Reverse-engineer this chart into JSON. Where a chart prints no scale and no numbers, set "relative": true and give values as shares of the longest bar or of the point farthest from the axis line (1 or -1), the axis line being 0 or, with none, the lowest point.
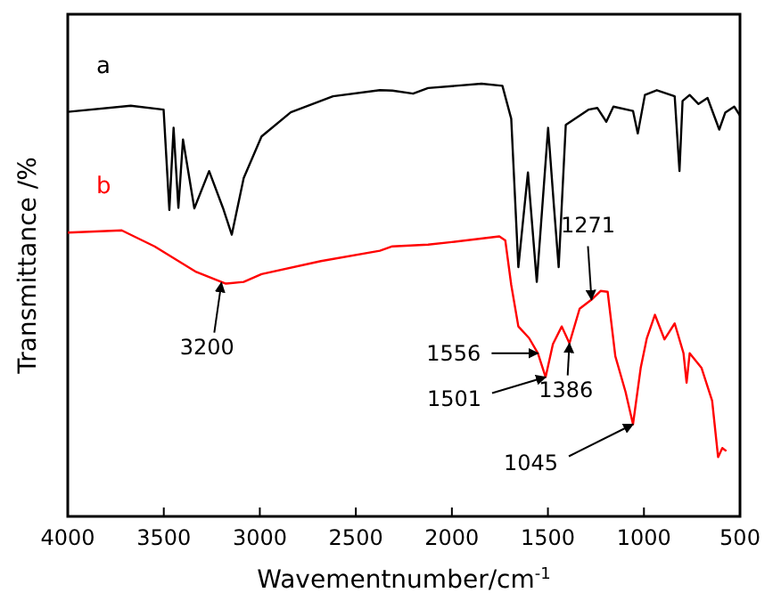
{
  "chart_data": {
    "type": "line",
    "relative": true,
    "xlabel": "Wavementnumber/cm$^{-1}$",
    "ylabel": "Transmittance /%",
    "xlim": [
      4000,
      500
    ],
    "xticks": [
      4000,
      3500,
      3000,
      2500,
      2000,
      1500,
      1000,
      500
    ],
    "tick_labels": "x",
    "legend": false,
    "series": [
      {
        "name": "a",
        "color": "#000000",
        "x": [
          4000,
          3672,
          3501,
          3471,
          3449,
          3424,
          3400,
          3341,
          3264,
          3192,
          3146,
          3084,
          2991,
          2839,
          2619,
          2375,
          2310,
          2202,
          2124,
          1846,
          1737,
          1691,
          1654,
          1604,
          1558,
          1499,
          1468,
          1444,
          1407,
          1289,
          1243,
          1196,
          1159,
          1057,
          1032,
          995,
          933,
          840,
          815,
          799,
          762,
          716,
          669,
          608,
          577,
          530,
          500
        ],
        "values": [
          0.935,
          0.949,
          0.94,
          0.708,
          0.898,
          0.713,
          0.871,
          0.712,
          0.798,
          0.713,
          0.651,
          0.782,
          0.878,
          0.934,
          0.971,
          0.985,
          0.984,
          0.977,
          0.99,
          1,
          0.995,
          0.919,
          0.576,
          0.795,
          0.542,
          0.898,
          0.713,
          0.576,
          0.905,
          0.94,
          0.944,
          0.912,
          0.947,
          0.937,
          0.885,
          0.974,
          0.985,
          0.971,
          0.798,
          0.96,
          0.974,
          0.953,
          0.967,
          0.894,
          0.933,
          0.947,
          0.926
        ]
      },
      {
        "name": "b",
        "color": "#ff0000",
        "x": [
          4000,
          3719,
          3548,
          3331,
          3177,
          3084,
          2991,
          2682,
          2375,
          2310,
          2124,
          2001,
          1753,
          1722,
          1691,
          1654,
          1598,
          1552,
          1512,
          1474,
          1428,
          1388,
          1335,
          1273,
          1226,
          1189,
          1149,
          1096,
          1057,
          1017,
          985,
          943,
          893,
          840,
          794,
          778,
          762,
          700,
          645,
          614,
          592,
          571
        ],
        "values": [
          0.656,
          0.661,
          0.624,
          0.565,
          0.538,
          0.542,
          0.56,
          0.59,
          0.614,
          0.624,
          0.628,
          0.634,
          0.647,
          0.638,
          0.535,
          0.439,
          0.412,
          0.377,
          0.322,
          0.398,
          0.439,
          0.4,
          0.48,
          0.501,
          0.521,
          0.519,
          0.37,
          0.288,
          0.213,
          0.343,
          0.412,
          0.466,
          0.409,
          0.446,
          0.377,
          0.309,
          0.377,
          0.343,
          0.267,
          0.137,
          0.158,
          0.151
        ]
      }
    ],
    "annotations": [
      {
        "text": "3200",
        "x": 3200,
        "y": 0.54
      },
      {
        "text": "1556",
        "x": 1552,
        "y": 0.377
      },
      {
        "text": "1501",
        "x": 1512,
        "y": 0.322
      },
      {
        "text": "1386",
        "x": 1388,
        "y": 0.4
      },
      {
        "text": "1271",
        "x": 1273,
        "y": 0.501
      },
      {
        "text": "1045",
        "x": 1057,
        "y": 0.213
      }
    ]
  }
}
